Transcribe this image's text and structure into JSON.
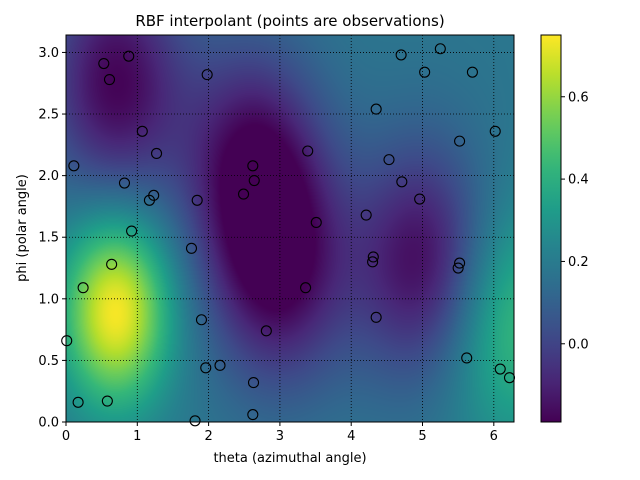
{
  "chart_data": {
    "type": "heatmap",
    "title": "RBF interpolant (points are observations)",
    "xlabel": "theta (azimuthal angle)",
    "ylabel": "phi (polar angle)",
    "xlim": [
      0,
      6.2832
    ],
    "ylim": [
      0,
      3.1416
    ],
    "xticks": [
      0,
      1,
      2,
      3,
      4,
      5,
      6
    ],
    "yticks": [
      0.0,
      0.5,
      1.0,
      1.5,
      2.0,
      2.5,
      3.0
    ],
    "xtick_labels": [
      "0",
      "1",
      "2",
      "3",
      "4",
      "5",
      "6"
    ],
    "ytick_labels": [
      "0.0",
      "0.5",
      "1.0",
      "1.5",
      "2.0",
      "2.5",
      "3.0"
    ],
    "grid": true,
    "colormap": "viridis",
    "colorbar": {
      "min": -0.19,
      "max": 0.75,
      "ticks": [
        0.0,
        0.2,
        0.4,
        0.6
      ],
      "tick_labels": [
        "0.0",
        "0.2",
        "0.4",
        "0.6"
      ]
    },
    "field_features": [
      {
        "theta": 0.7,
        "phi": 0.9,
        "value": 0.75
      },
      {
        "theta": 0.7,
        "phi": 2.75,
        "value": -0.18
      },
      {
        "theta": 3.0,
        "phi": 1.25,
        "value": -0.17
      },
      {
        "theta": 5.0,
        "phi": 1.3,
        "value": -0.17
      },
      {
        "theta": 6.25,
        "phi": 0.8,
        "value": 0.45
      },
      {
        "theta": 2.6,
        "phi": 2.1,
        "value": -0.15
      }
    ],
    "observations": [
      {
        "theta": 0.53,
        "phi": 2.91
      },
      {
        "theta": 0.61,
        "phi": 2.78
      },
      {
        "theta": 0.88,
        "phi": 2.97
      },
      {
        "theta": 1.98,
        "phi": 2.82
      },
      {
        "theta": 4.7,
        "phi": 2.98
      },
      {
        "theta": 5.25,
        "phi": 3.03
      },
      {
        "theta": 5.03,
        "phi": 2.84
      },
      {
        "theta": 5.7,
        "phi": 2.84
      },
      {
        "theta": 4.35,
        "phi": 2.54
      },
      {
        "theta": 1.07,
        "phi": 2.36
      },
      {
        "theta": 6.02,
        "phi": 2.36
      },
      {
        "theta": 5.52,
        "phi": 2.28
      },
      {
        "theta": 1.27,
        "phi": 2.18
      },
      {
        "theta": 3.39,
        "phi": 2.2
      },
      {
        "theta": 0.11,
        "phi": 2.08
      },
      {
        "theta": 2.62,
        "phi": 2.08
      },
      {
        "theta": 4.53,
        "phi": 2.13
      },
      {
        "theta": 2.64,
        "phi": 1.96
      },
      {
        "theta": 4.71,
        "phi": 1.95
      },
      {
        "theta": 0.82,
        "phi": 1.94
      },
      {
        "theta": 2.49,
        "phi": 1.85
      },
      {
        "theta": 1.23,
        "phi": 1.84
      },
      {
        "theta": 1.17,
        "phi": 1.8
      },
      {
        "theta": 1.84,
        "phi": 1.8
      },
      {
        "theta": 4.96,
        "phi": 1.81
      },
      {
        "theta": 4.21,
        "phi": 1.68
      },
      {
        "theta": 3.51,
        "phi": 1.62
      },
      {
        "theta": 0.92,
        "phi": 1.55
      },
      {
        "theta": 1.76,
        "phi": 1.41
      },
      {
        "theta": 4.31,
        "phi": 1.34
      },
      {
        "theta": 4.3,
        "phi": 1.3
      },
      {
        "theta": 5.52,
        "phi": 1.29
      },
      {
        "theta": 5.5,
        "phi": 1.25
      },
      {
        "theta": 0.64,
        "phi": 1.28
      },
      {
        "theta": 0.24,
        "phi": 1.09
      },
      {
        "theta": 3.36,
        "phi": 1.09
      },
      {
        "theta": 4.35,
        "phi": 0.85
      },
      {
        "theta": 1.9,
        "phi": 0.83
      },
      {
        "theta": 2.81,
        "phi": 0.74
      },
      {
        "theta": 0.01,
        "phi": 0.66
      },
      {
        "theta": 5.62,
        "phi": 0.52
      },
      {
        "theta": 2.16,
        "phi": 0.46
      },
      {
        "theta": 1.96,
        "phi": 0.44
      },
      {
        "theta": 6.09,
        "phi": 0.43
      },
      {
        "theta": 6.22,
        "phi": 0.36
      },
      {
        "theta": 2.63,
        "phi": 0.32
      },
      {
        "theta": 0.17,
        "phi": 0.16
      },
      {
        "theta": 0.58,
        "phi": 0.17
      },
      {
        "theta": 2.62,
        "phi": 0.06
      },
      {
        "theta": 1.81,
        "phi": 0.01
      }
    ]
  }
}
